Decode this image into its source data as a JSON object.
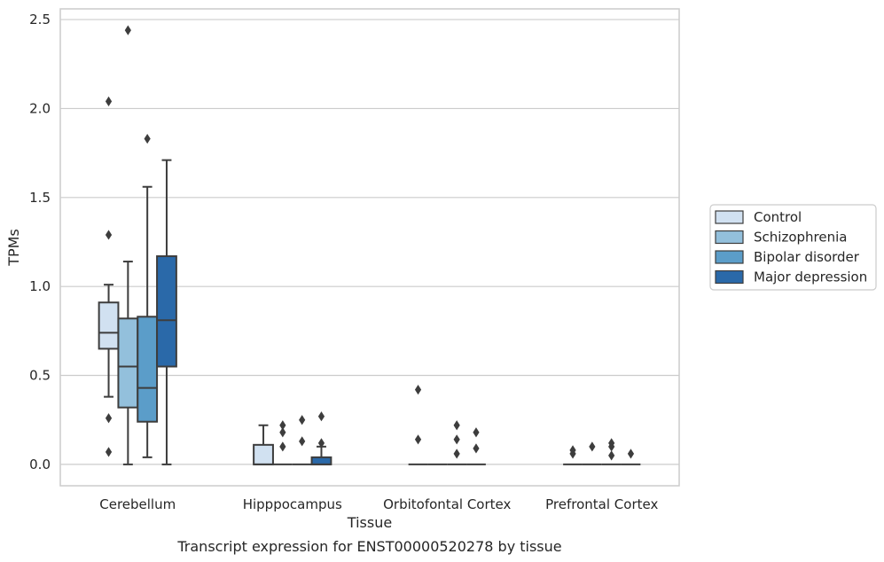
{
  "caption": "Transcript expression for ENST00000520278 by tissue",
  "chart_data": {
    "type": "box",
    "title": "",
    "xlabel": "Tissue",
    "ylabel": "TPMs",
    "ylim": [
      -0.12,
      2.56
    ],
    "yticks": [
      "0.0",
      "0.5",
      "1.0",
      "1.5",
      "2.0",
      "2.5"
    ],
    "ytick_values": [
      0,
      0.5,
      1.0,
      1.5,
      2.0,
      2.5
    ],
    "grid": "horizontal",
    "legend_position": "right",
    "categories": [
      "Cerebellum",
      "Hipppocampus",
      "Orbitofontal Cortex",
      "Prefrontal Cortex"
    ],
    "series": [
      {
        "name": "Control",
        "color": "#d1e1f1",
        "boxes": [
          {
            "whislo": 0.38,
            "q1": 0.65,
            "med": 0.74,
            "q3": 0.91,
            "whishi": 1.01,
            "fliers": [
              0.07,
              0.26,
              1.29,
              2.04
            ]
          },
          {
            "whislo": 0.0,
            "q1": 0.0,
            "med": 0.0,
            "q3": 0.11,
            "whishi": 0.22,
            "fliers": []
          },
          {
            "whislo": 0.0,
            "q1": 0.0,
            "med": 0.0,
            "q3": 0.0,
            "whishi": 0.0,
            "fliers": [
              0.14,
              0.42
            ]
          },
          {
            "whislo": 0.0,
            "q1": 0.0,
            "med": 0.0,
            "q3": 0.0,
            "whishi": 0.0,
            "fliers": [
              0.06,
              0.08
            ]
          }
        ]
      },
      {
        "name": "Schizophrenia",
        "color": "#93c0dc",
        "boxes": [
          {
            "whislo": 0.0,
            "q1": 0.32,
            "med": 0.55,
            "q3": 0.82,
            "whishi": 1.14,
            "fliers": [
              2.44
            ]
          },
          {
            "whislo": 0.0,
            "q1": 0.0,
            "med": 0.0,
            "q3": 0.0,
            "whishi": 0.0,
            "fliers": [
              0.1,
              0.18,
              0.22
            ]
          },
          {
            "whislo": 0.0,
            "q1": 0.0,
            "med": 0.0,
            "q3": 0.0,
            "whishi": 0.0,
            "fliers": []
          },
          {
            "whislo": 0.0,
            "q1": 0.0,
            "med": 0.0,
            "q3": 0.0,
            "whishi": 0.0,
            "fliers": [
              0.1
            ]
          }
        ]
      },
      {
        "name": "Bipolar disorder",
        "color": "#5b9dc9",
        "boxes": [
          {
            "whislo": 0.04,
            "q1": 0.24,
            "med": 0.43,
            "q3": 0.83,
            "whishi": 1.56,
            "fliers": [
              1.83
            ]
          },
          {
            "whislo": 0.0,
            "q1": 0.0,
            "med": 0.0,
            "q3": 0.0,
            "whishi": 0.0,
            "fliers": [
              0.13,
              0.25
            ]
          },
          {
            "whislo": 0.0,
            "q1": 0.0,
            "med": 0.0,
            "q3": 0.0,
            "whishi": 0.0,
            "fliers": [
              0.06,
              0.14,
              0.22
            ]
          },
          {
            "whislo": 0.0,
            "q1": 0.0,
            "med": 0.0,
            "q3": 0.0,
            "whishi": 0.0,
            "fliers": [
              0.05,
              0.1,
              0.12
            ]
          }
        ]
      },
      {
        "name": "Major depression",
        "color": "#2a69a9",
        "boxes": [
          {
            "whislo": 0.0,
            "q1": 0.55,
            "med": 0.81,
            "q3": 1.17,
            "whishi": 1.71,
            "fliers": []
          },
          {
            "whislo": 0.0,
            "q1": 0.0,
            "med": 0.0,
            "q3": 0.04,
            "whishi": 0.1,
            "fliers": [
              0.12,
              0.27
            ]
          },
          {
            "whislo": 0.0,
            "q1": 0.0,
            "med": 0.0,
            "q3": 0.0,
            "whishi": 0.0,
            "fliers": [
              0.09,
              0.18
            ]
          },
          {
            "whislo": 0.0,
            "q1": 0.0,
            "med": 0.0,
            "q3": 0.0,
            "whishi": 0.0,
            "fliers": [
              0.06
            ]
          }
        ]
      }
    ]
  }
}
